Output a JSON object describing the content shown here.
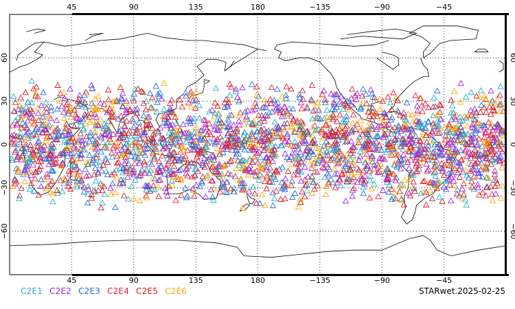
{
  "map": {
    "projection": "equirectangular, centered on 180",
    "lon_range": [
      0,
      360
    ],
    "lat_range": [
      -90,
      90
    ],
    "top_lon_labels": [
      "45",
      "90",
      "135",
      "180",
      "−135",
      "−90",
      "−45"
    ],
    "bottom_lon_labels": [
      "45",
      "90",
      "135",
      "180",
      "−135",
      "−90",
      "−45"
    ],
    "left_lat_labels": [
      "60",
      "30",
      "0",
      "−30",
      "−60"
    ],
    "right_lat_labels": [
      "60",
      "30",
      "0",
      "−30",
      "−60"
    ],
    "grid": "dotted",
    "marker": "open triangle",
    "data_lat_extent": [
      -45,
      45
    ]
  },
  "legend": {
    "series": [
      {
        "name": "C2E1",
        "color": "#21b0c8"
      },
      {
        "name": "C2E2",
        "color": "#a020f0"
      },
      {
        "name": "C2E3",
        "color": "#1f6fe0"
      },
      {
        "name": "C2E4",
        "color": "#e0203a"
      },
      {
        "name": "C2E5",
        "color": "#d81818"
      },
      {
        "name": "C2E6",
        "color": "#ffa500"
      }
    ]
  },
  "footer": {
    "label": "STARwet.2025-02-25"
  }
}
